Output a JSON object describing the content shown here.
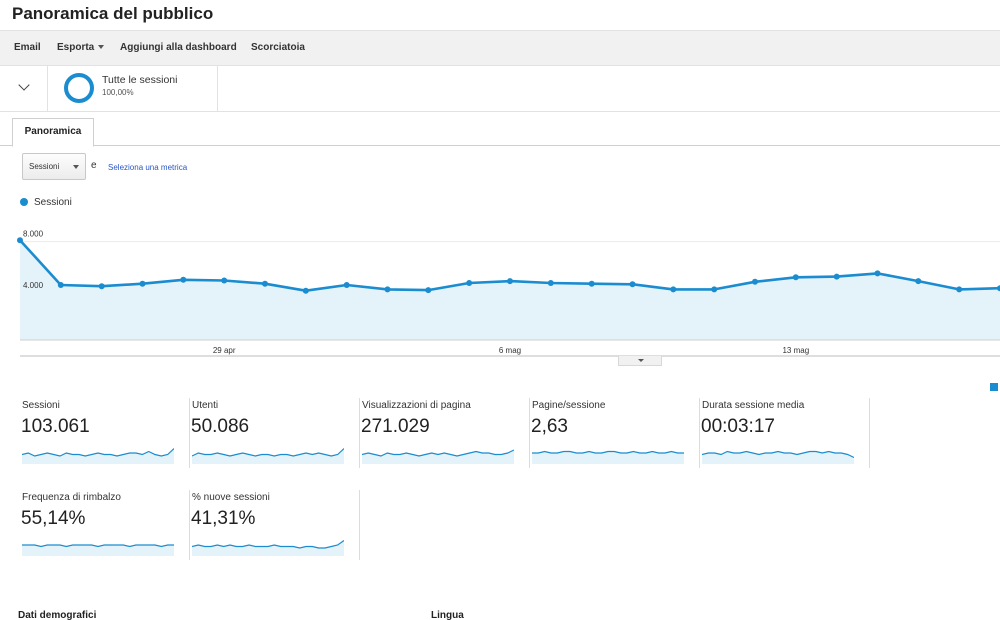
{
  "page": {
    "title": "Panoramica del pubblico"
  },
  "toolbar": {
    "email": "Email",
    "export": "Esporta",
    "add_dashboard": "Aggiungi alla dashboard",
    "shortcut": "Scorciatoia"
  },
  "segment": {
    "name": "Tutte le sessioni",
    "percent": "100,00%"
  },
  "tabs": {
    "overview": "Panoramica"
  },
  "metric_picker": {
    "selected": "Sessioni",
    "conjunction": "e",
    "select_link": "Seleziona una metrica"
  },
  "colors": {
    "accent": "#1a8ccf",
    "fill": "#e4f2fa",
    "link": "#2a56c6"
  },
  "chart_data": {
    "type": "area",
    "series": [
      {
        "name": "Sessioni",
        "values": [
          7800,
          4300,
          4200,
          4400,
          4700,
          4650,
          4400,
          3850,
          4300,
          3950,
          3900,
          4450,
          4600,
          4450,
          4400,
          4350,
          3950,
          3950,
          4550,
          4900,
          4950,
          5200,
          4600,
          3950,
          4050
        ]
      }
    ],
    "ylim": [
      0,
      8000
    ],
    "y_ticks": [
      "8.000",
      "4.000"
    ],
    "y_tick_values": [
      8000,
      4000
    ],
    "x_labels": [
      "29 apr",
      "6 mag",
      "13 mag"
    ],
    "x_label_indices": [
      5,
      12,
      19
    ],
    "grid": true
  },
  "scorecards": [
    {
      "label": "Sessioni",
      "value": "103.061",
      "spark": [
        5,
        6,
        4,
        5,
        6,
        5,
        4,
        6,
        5,
        5,
        4,
        5,
        6,
        5,
        5,
        4,
        5,
        6,
        6,
        5,
        7,
        5,
        4,
        5,
        9
      ]
    },
    {
      "label": "Utenti",
      "value": "50.086",
      "spark": [
        4,
        6,
        5,
        5,
        6,
        5,
        4,
        5,
        6,
        5,
        4,
        5,
        5,
        4,
        5,
        5,
        4,
        5,
        6,
        5,
        6,
        5,
        4,
        5,
        9
      ]
    },
    {
      "label": "Visualizzazioni di pagina",
      "value": "271.029",
      "spark": [
        5,
        6,
        5,
        4,
        6,
        5,
        5,
        6,
        5,
        4,
        5,
        6,
        5,
        6,
        5,
        4,
        5,
        6,
        7,
        6,
        6,
        5,
        5,
        6,
        8
      ]
    },
    {
      "label": "Pagine/sessione",
      "value": "2,63",
      "spark": [
        6,
        6,
        7,
        6,
        6,
        7,
        7,
        6,
        6,
        7,
        6,
        6,
        7,
        7,
        6,
        6,
        7,
        6,
        6,
        7,
        6,
        6,
        7,
        6,
        6
      ]
    },
    {
      "label": "Durata sessione media",
      "value": "00:03:17",
      "spark": [
        5,
        6,
        6,
        5,
        7,
        6,
        6,
        7,
        6,
        5,
        6,
        6,
        7,
        6,
        6,
        5,
        6,
        7,
        7,
        6,
        7,
        6,
        6,
        5,
        3
      ]
    },
    {
      "label": "Frequenza di rimbalzo",
      "value": "55,14%",
      "spark": [
        6,
        6,
        6,
        5,
        6,
        6,
        6,
        5,
        6,
        6,
        6,
        6,
        5,
        6,
        6,
        6,
        6,
        5,
        6,
        6,
        6,
        6,
        5,
        6,
        6
      ]
    },
    {
      "label": "% nuove sessioni",
      "value": "41,31%",
      "spark": [
        5,
        6,
        5,
        5,
        6,
        5,
        6,
        5,
        5,
        6,
        5,
        5,
        5,
        6,
        5,
        5,
        5,
        4,
        5,
        5,
        4,
        4,
        5,
        6,
        9
      ]
    }
  ],
  "sections": {
    "demographics": "Dati demografici",
    "language": "Lingua"
  }
}
